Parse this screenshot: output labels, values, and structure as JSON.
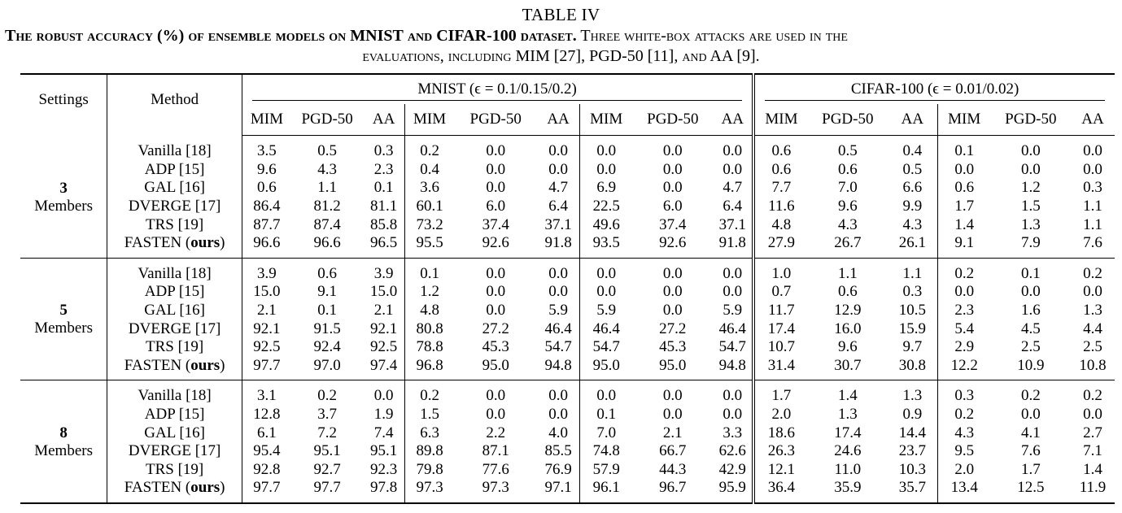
{
  "caption": {
    "label": "TABLE IV",
    "line1_bold_a": "The robust accuracy (%) of ensemble models on ",
    "line1_bold_b": "MNIST",
    "line1_bold_c": " and ",
    "line1_bold_d": "CIFAR-100",
    "line1_bold_e": " dataset.",
    "line1_rest": " Three white-box attacks are used in the",
    "line2": "evaluations, including MIM [27], PGD-50 [11], and AA [9]."
  },
  "header": {
    "settings": "Settings",
    "method": "Method",
    "mnist": "MNIST (ϵ = 0.1/0.15/0.2)",
    "cifar": "CIFAR-100 (ϵ = 0.01/0.02)",
    "subcols": [
      "MIM",
      "PGD-50",
      "AA",
      "MIM",
      "PGD-50",
      "AA",
      "MIM",
      "PGD-50",
      "AA",
      "MIM",
      "PGD-50",
      "AA",
      "MIM",
      "PGD-50",
      "AA"
    ]
  },
  "groups": [
    {
      "count": "3",
      "label": "Members",
      "rows": [
        {
          "method": "Vanilla [18]",
          "ours": "",
          "bold": false,
          "values": [
            "3.5",
            "0.5",
            "0.3",
            "0.2",
            "0.0",
            "0.0",
            "0.0",
            "0.0",
            "0.0",
            "0.6",
            "0.5",
            "0.4",
            "0.1",
            "0.0",
            "0.0"
          ]
        },
        {
          "method": "ADP [15]",
          "ours": "",
          "bold": false,
          "values": [
            "9.6",
            "4.3",
            "2.3",
            "0.4",
            "0.0",
            "0.0",
            "0.0",
            "0.0",
            "0.0",
            "0.6",
            "0.6",
            "0.5",
            "0.0",
            "0.0",
            "0.0"
          ]
        },
        {
          "method": "GAL [16]",
          "ours": "",
          "bold": false,
          "values": [
            "0.6",
            "1.1",
            "0.1",
            "3.6",
            "0.0",
            "4.7",
            "6.9",
            "0.0",
            "4.7",
            "7.7",
            "7.0",
            "6.6",
            "0.6",
            "1.2",
            "0.3"
          ]
        },
        {
          "method": "DVERGE [17]",
          "ours": "",
          "bold": false,
          "values": [
            "86.4",
            "81.2",
            "81.1",
            "60.1",
            "6.0",
            "6.4",
            "22.5",
            "6.0",
            "6.4",
            "11.6",
            "9.6",
            "9.9",
            "1.7",
            "1.5",
            "1.1"
          ]
        },
        {
          "method": "TRS [19]",
          "ours": "",
          "bold": false,
          "values": [
            "87.7",
            "87.4",
            "85.8",
            "73.2",
            "37.4",
            "37.1",
            "49.6",
            "37.4",
            "37.1",
            "4.8",
            "4.3",
            "4.3",
            "1.4",
            "1.3",
            "1.1"
          ]
        },
        {
          "method": "FASTEN (",
          "ours": "ours",
          "bold": true,
          "values": [
            "96.6",
            "96.6",
            "96.5",
            "95.5",
            "92.6",
            "91.8",
            "93.5",
            "92.6",
            "91.8",
            "27.9",
            "26.7",
            "26.1",
            "9.1",
            "7.9",
            "7.6"
          ]
        }
      ]
    },
    {
      "count": "5",
      "label": "Members",
      "rows": [
        {
          "method": "Vanilla [18]",
          "ours": "",
          "bold": false,
          "values": [
            "3.9",
            "0.6",
            "3.9",
            "0.1",
            "0.0",
            "0.0",
            "0.0",
            "0.0",
            "0.0",
            "1.0",
            "1.1",
            "1.1",
            "0.2",
            "0.1",
            "0.2"
          ]
        },
        {
          "method": "ADP [15]",
          "ours": "",
          "bold": false,
          "values": [
            "15.0",
            "9.1",
            "15.0",
            "1.2",
            "0.0",
            "0.0",
            "0.0",
            "0.0",
            "0.0",
            "0.7",
            "0.6",
            "0.3",
            "0.0",
            "0.0",
            "0.0"
          ]
        },
        {
          "method": "GAL [16]",
          "ours": "",
          "bold": false,
          "values": [
            "2.1",
            "0.1",
            "2.1",
            "4.8",
            "0.0",
            "5.9",
            "5.9",
            "0.0",
            "5.9",
            "11.7",
            "12.9",
            "10.5",
            "2.3",
            "1.6",
            "1.3"
          ]
        },
        {
          "method": "DVERGE [17]",
          "ours": "",
          "bold": false,
          "values": [
            "92.1",
            "91.5",
            "92.1",
            "80.8",
            "27.2",
            "46.4",
            "46.4",
            "27.2",
            "46.4",
            "17.4",
            "16.0",
            "15.9",
            "5.4",
            "4.5",
            "4.4"
          ]
        },
        {
          "method": "TRS [19]",
          "ours": "",
          "bold": false,
          "values": [
            "92.5",
            "92.4",
            "92.5",
            "78.8",
            "45.3",
            "54.7",
            "54.7",
            "45.3",
            "54.7",
            "10.7",
            "9.6",
            "9.7",
            "2.9",
            "2.5",
            "2.5"
          ]
        },
        {
          "method": "FASTEN (",
          "ours": "ours",
          "bold": true,
          "values": [
            "97.7",
            "97.0",
            "97.4",
            "96.8",
            "95.0",
            "94.8",
            "95.0",
            "95.0",
            "94.8",
            "31.4",
            "30.7",
            "30.8",
            "12.2",
            "10.9",
            "10.8"
          ]
        }
      ]
    },
    {
      "count": "8",
      "label": "Members",
      "rows": [
        {
          "method": "Vanilla [18]",
          "ours": "",
          "bold": false,
          "values": [
            "3.1",
            "0.2",
            "0.0",
            "0.2",
            "0.0",
            "0.0",
            "0.0",
            "0.0",
            "0.0",
            "1.7",
            "1.4",
            "1.3",
            "0.3",
            "0.2",
            "0.2"
          ]
        },
        {
          "method": "ADP [15]",
          "ours": "",
          "bold": false,
          "values": [
            "12.8",
            "3.7",
            "1.9",
            "1.5",
            "0.0",
            "0.0",
            "0.1",
            "0.0",
            "0.0",
            "2.0",
            "1.3",
            "0.9",
            "0.2",
            "0.0",
            "0.0"
          ]
        },
        {
          "method": "GAL [16]",
          "ours": "",
          "bold": false,
          "values": [
            "6.1",
            "7.2",
            "7.4",
            "6.3",
            "2.2",
            "4.0",
            "7.0",
            "2.1",
            "3.3",
            "18.6",
            "17.4",
            "14.4",
            "4.3",
            "4.1",
            "2.7"
          ]
        },
        {
          "method": "DVERGE [17]",
          "ours": "",
          "bold": false,
          "values": [
            "95.4",
            "95.1",
            "95.1",
            "89.8",
            "87.1",
            "85.5",
            "74.8",
            "66.7",
            "62.6",
            "26.3",
            "24.6",
            "23.7",
            "9.5",
            "7.6",
            "7.1"
          ]
        },
        {
          "method": "TRS [19]",
          "ours": "",
          "bold": false,
          "values": [
            "92.8",
            "92.7",
            "92.3",
            "79.8",
            "77.6",
            "76.9",
            "57.9",
            "44.3",
            "42.9",
            "12.1",
            "11.0",
            "10.3",
            "2.0",
            "1.7",
            "1.4"
          ]
        },
        {
          "method": "FASTEN (",
          "ours": "ours",
          "bold": true,
          "values": [
            "97.7",
            "97.7",
            "97.8",
            "97.3",
            "97.3",
            "97.1",
            "96.1",
            "96.7",
            "95.9",
            "36.4",
            "35.9",
            "35.7",
            "13.4",
            "12.5",
            "11.9"
          ]
        }
      ]
    }
  ]
}
